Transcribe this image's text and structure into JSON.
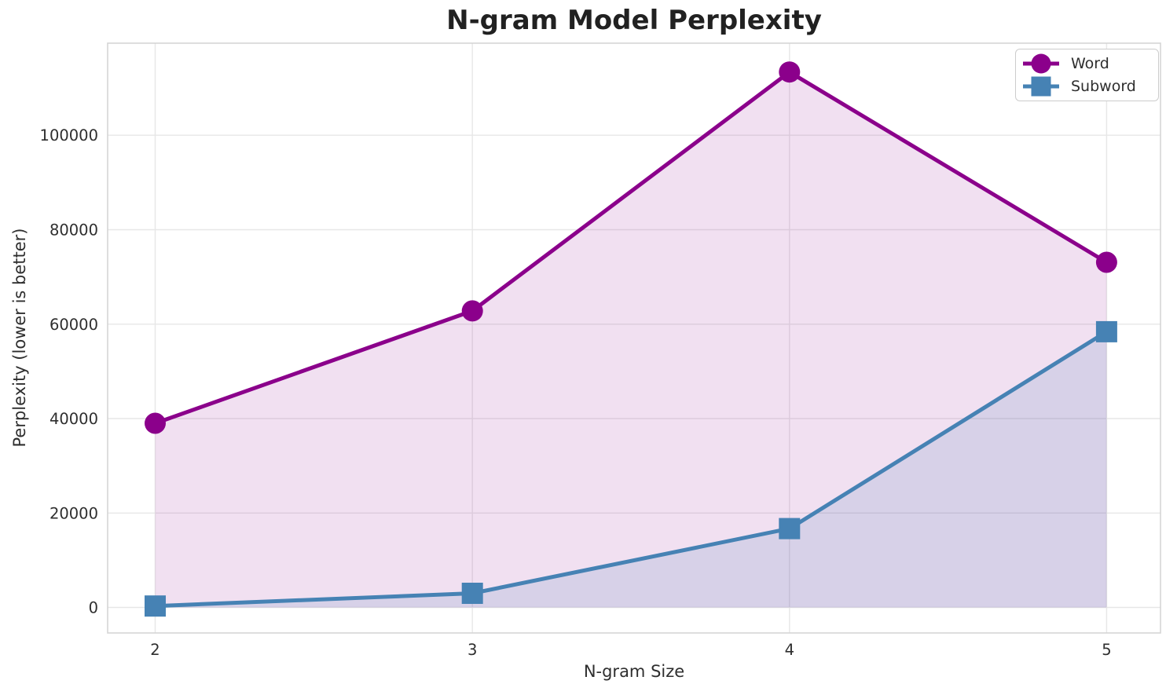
{
  "chart_data": {
    "type": "line",
    "title": "N-gram Model Perplexity",
    "xlabel": "N-gram Size",
    "ylabel": "Perplexity (lower is better)",
    "x": [
      2,
      3,
      4,
      5
    ],
    "x_ticks": [
      2,
      3,
      4,
      5
    ],
    "y_ticks": [
      0,
      20000,
      40000,
      60000,
      80000,
      100000
    ],
    "xlim": [
      1.85,
      5.17
    ],
    "ylim": [
      -5400,
      119500
    ],
    "grid": true,
    "legend_position": "upper right",
    "series": [
      {
        "name": "Word",
        "marker": "circle",
        "color": "#8B008B",
        "fill_alpha": 0.12,
        "values": [
          39000,
          62800,
          113400,
          73100
        ]
      },
      {
        "name": "Subword",
        "marker": "square",
        "color": "#4682B4",
        "fill_alpha": 0.15,
        "values": [
          300,
          3000,
          16700,
          58400
        ]
      }
    ],
    "colors": {
      "grid": "#e7e7e7",
      "spine": "#d5d5d5",
      "text": "#2e2e2e",
      "title": "#212121",
      "background": "#ffffff"
    }
  }
}
